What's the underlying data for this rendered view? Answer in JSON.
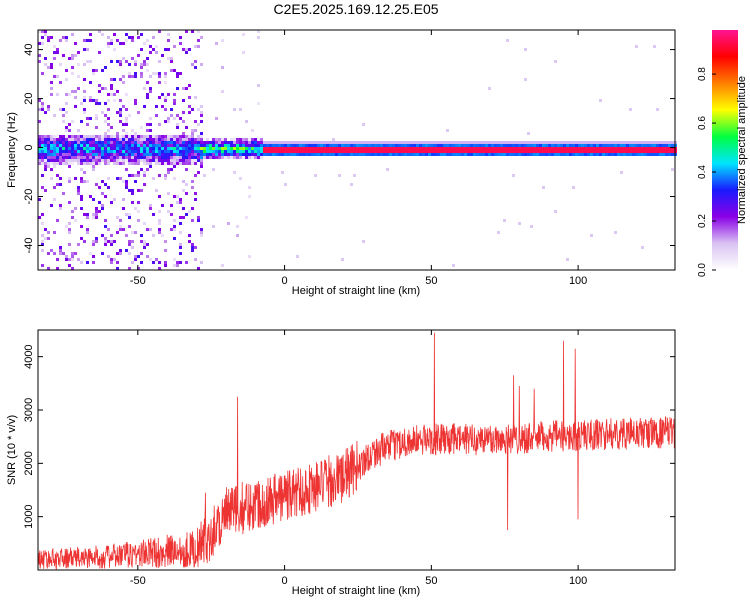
{
  "title": "C2E5.2025.169.12.25.E05",
  "chart_data": [
    {
      "type": "heatmap",
      "xlabel": "Height of straight line (km)",
      "ylabel": "Frequency (Hz)",
      "xlim": [
        -84,
        133
      ],
      "ylim": [
        -50,
        48
      ],
      "x_ticks": [
        -50,
        0,
        50,
        100
      ],
      "y_ticks": [
        -40,
        -20,
        0,
        20,
        40
      ],
      "grid": false,
      "colormap": [
        "#ffffff",
        "#d9c2f2",
        "#8a00e6",
        "#1a1aff",
        "#00e5ff",
        "#00ff40",
        "#ffff00",
        "#ff7f00",
        "#ff0000",
        "#ff1493"
      ],
      "colorbar": {
        "label": "Normalized spectral amplitude",
        "range": [
          0.0,
          0.98
        ],
        "ticks": [
          0.0,
          0.2,
          0.4,
          0.6,
          0.8
        ]
      },
      "ridge": {
        "frequency": 0,
        "segments": [
          {
            "x_from": -84,
            "x_to": -30,
            "amplitude": 0.3
          },
          {
            "x_from": -30,
            "x_to": -8,
            "amplitude": 0.45
          },
          {
            "x_from": -8,
            "x_to": 133,
            "amplitude": 0.95
          }
        ]
      },
      "noise_region": {
        "x_from": -84,
        "x_to": -28
      }
    },
    {
      "type": "line",
      "xlabel": "Height of straight line (km)",
      "ylabel": "SNR (10 * v/v)",
      "xlim": [
        -84,
        133
      ],
      "ylim": [
        0,
        4500
      ],
      "x_ticks": [
        -50,
        0,
        50,
        100
      ],
      "y_ticks": [
        1000,
        2000,
        3000,
        4000
      ],
      "grid": false,
      "color": "#ee3333",
      "trend": [
        {
          "x": -84,
          "y": 200
        },
        {
          "x": -60,
          "y": 250
        },
        {
          "x": -40,
          "y": 350
        },
        {
          "x": -30,
          "y": 400
        },
        {
          "x": -25,
          "y": 700
        },
        {
          "x": -20,
          "y": 1050
        },
        {
          "x": -10,
          "y": 1250
        },
        {
          "x": 0,
          "y": 1400
        },
        {
          "x": 10,
          "y": 1550
        },
        {
          "x": 20,
          "y": 1750
        },
        {
          "x": 25,
          "y": 1950
        },
        {
          "x": 30,
          "y": 2200
        },
        {
          "x": 40,
          "y": 2400
        },
        {
          "x": 50,
          "y": 2450
        },
        {
          "x": 70,
          "y": 2450
        },
        {
          "x": 90,
          "y": 2500
        },
        {
          "x": 110,
          "y": 2550
        },
        {
          "x": 133,
          "y": 2580
        }
      ],
      "spikes": [
        {
          "x": -16,
          "y": 3250
        },
        {
          "x": -27,
          "y": 1450
        },
        {
          "x": 51,
          "y": 4450
        },
        {
          "x": 78,
          "y": 3650
        },
        {
          "x": 80,
          "y": 3450
        },
        {
          "x": 85,
          "y": 3400
        },
        {
          "x": 95,
          "y": 4300
        },
        {
          "x": 99,
          "y": 4150
        },
        {
          "x": 100,
          "y": 950
        },
        {
          "x": 76,
          "y": 750
        }
      ]
    }
  ]
}
